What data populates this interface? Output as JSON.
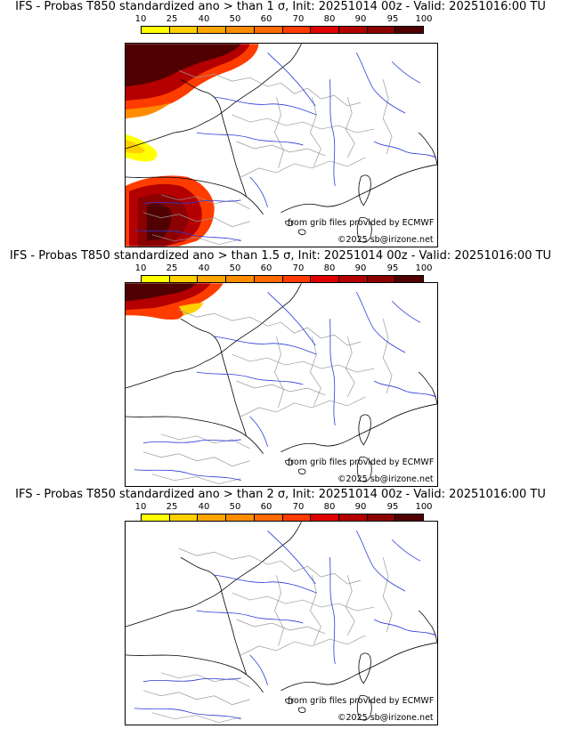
{
  "colorbar": {
    "ticks": [
      "10",
      "25",
      "40",
      "50",
      "60",
      "70",
      "80",
      "90",
      "95",
      "100"
    ],
    "colors": [
      "#ffff00",
      "#ffd000",
      "#ffa500",
      "#ff8c00",
      "#ff6a00",
      "#ff3c00",
      "#e10000",
      "#b40000",
      "#8b0000",
      "#500000"
    ]
  },
  "panels": [
    {
      "title": "IFS - Probas T850  standardized ano > than 1 σ, Init: 20251014 00z - Valid: 20251016:00 TU",
      "source_credit": "from grib files provided by ECMWF",
      "copyright": "©2025 sb@irizone.net",
      "anomaly_areas": [
        "english-channel-north-west",
        "biscay-coast-west",
        "iberia-north-west"
      ]
    },
    {
      "title": "IFS - Probas T850  standardized ano > than 1.5 σ, Init: 20251014 00z - Valid: 20251016:00 TU",
      "source_credit": "from grib files provided by ECMWF",
      "copyright": "©2025 sb@irizone.net",
      "anomaly_areas": [
        "english-channel-north-west"
      ]
    },
    {
      "title": "IFS - Probas T850  standardized ano > than 2 σ, Init: 20251014 00z - Valid: 20251016:00 TU",
      "source_credit": "from grib files provided by ECMWF",
      "copyright": "©2025 sb@irizone.net",
      "anomaly_areas": []
    }
  ]
}
